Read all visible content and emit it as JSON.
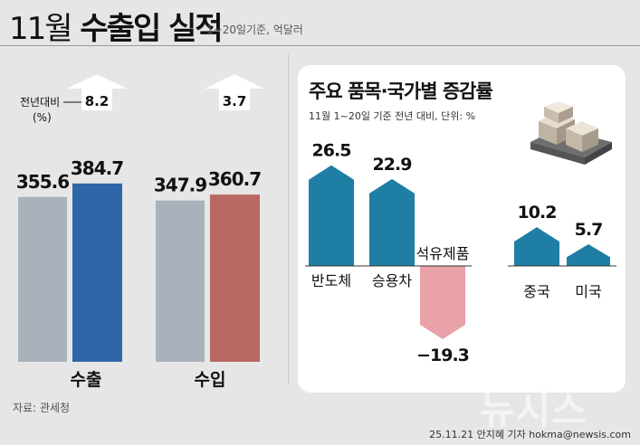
{
  "header": {
    "title_part1": "11월",
    "title_part2": "수출입 실적",
    "subtitle": "1~20일기준, 억달러"
  },
  "source": "자료: 관세청",
  "credit": "25.11.21 안지혜 기자 hokma@newsis.com",
  "watermark": "뉴시스",
  "colors": {
    "gray_bar": "#a9b2bb",
    "export_bar": "#2e67a8",
    "import_bar": "#b96863",
    "item_pos": "#1f7ea4",
    "item_neg": "#e8a2a8"
  },
  "chart_data": [
    {
      "type": "bar",
      "categories": [
        "수출",
        "수입"
      ],
      "series": [
        {
          "values": [
            355.6,
            347.9
          ]
        },
        {
          "values": [
            384.7,
            360.7
          ]
        }
      ],
      "growth_label_lines": [
        "전년대비",
        "(%)"
      ],
      "growth": [
        8.2,
        3.7
      ],
      "ylim": [
        0,
        400
      ]
    },
    {
      "type": "bar",
      "title": "주요 품목·국가별 증감률",
      "subtitle": "11월 1~20일 기준 전년 대비, 단위: %",
      "categories": [
        "반도체",
        "승용차",
        "석유제품",
        "중국",
        "미국"
      ],
      "values": [
        26.5,
        22.9,
        -19.3,
        10.2,
        5.7
      ]
    }
  ]
}
